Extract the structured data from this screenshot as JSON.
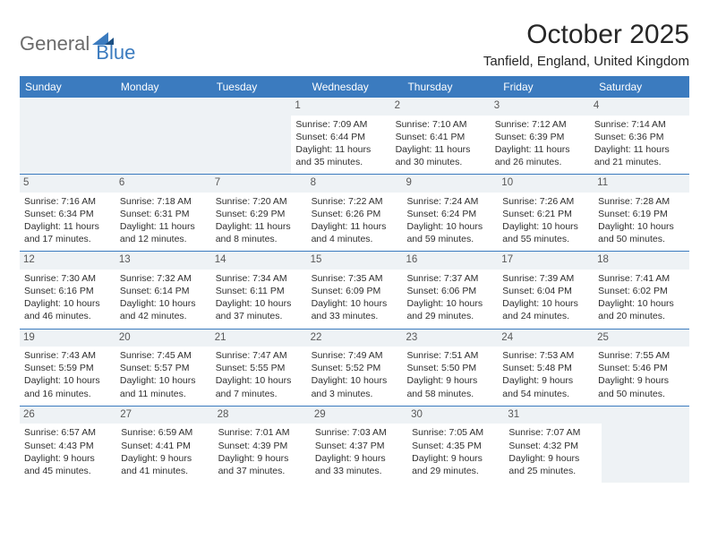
{
  "logo": {
    "text_general": "General",
    "text_blue": "Blue",
    "icon_color_dark": "#1c4f82",
    "icon_color_light": "#3b7bbf"
  },
  "title": "October 2025",
  "location": "Tanfield, England, United Kingdom",
  "colors": {
    "header_bg": "#3b7bbf",
    "header_text": "#ffffff",
    "daynum_bg": "#eef2f5",
    "row_border": "#3b7bbf"
  },
  "day_labels": [
    "Sunday",
    "Monday",
    "Tuesday",
    "Wednesday",
    "Thursday",
    "Friday",
    "Saturday"
  ],
  "weeks": [
    [
      null,
      null,
      null,
      {
        "n": "1",
        "sr": "7:09 AM",
        "ss": "6:44 PM",
        "dl": "11 hours and 35 minutes."
      },
      {
        "n": "2",
        "sr": "7:10 AM",
        "ss": "6:41 PM",
        "dl": "11 hours and 30 minutes."
      },
      {
        "n": "3",
        "sr": "7:12 AM",
        "ss": "6:39 PM",
        "dl": "11 hours and 26 minutes."
      },
      {
        "n": "4",
        "sr": "7:14 AM",
        "ss": "6:36 PM",
        "dl": "11 hours and 21 minutes."
      }
    ],
    [
      {
        "n": "5",
        "sr": "7:16 AM",
        "ss": "6:34 PM",
        "dl": "11 hours and 17 minutes."
      },
      {
        "n": "6",
        "sr": "7:18 AM",
        "ss": "6:31 PM",
        "dl": "11 hours and 12 minutes."
      },
      {
        "n": "7",
        "sr": "7:20 AM",
        "ss": "6:29 PM",
        "dl": "11 hours and 8 minutes."
      },
      {
        "n": "8",
        "sr": "7:22 AM",
        "ss": "6:26 PM",
        "dl": "11 hours and 4 minutes."
      },
      {
        "n": "9",
        "sr": "7:24 AM",
        "ss": "6:24 PM",
        "dl": "10 hours and 59 minutes."
      },
      {
        "n": "10",
        "sr": "7:26 AM",
        "ss": "6:21 PM",
        "dl": "10 hours and 55 minutes."
      },
      {
        "n": "11",
        "sr": "7:28 AM",
        "ss": "6:19 PM",
        "dl": "10 hours and 50 minutes."
      }
    ],
    [
      {
        "n": "12",
        "sr": "7:30 AM",
        "ss": "6:16 PM",
        "dl": "10 hours and 46 minutes."
      },
      {
        "n": "13",
        "sr": "7:32 AM",
        "ss": "6:14 PM",
        "dl": "10 hours and 42 minutes."
      },
      {
        "n": "14",
        "sr": "7:34 AM",
        "ss": "6:11 PM",
        "dl": "10 hours and 37 minutes."
      },
      {
        "n": "15",
        "sr": "7:35 AM",
        "ss": "6:09 PM",
        "dl": "10 hours and 33 minutes."
      },
      {
        "n": "16",
        "sr": "7:37 AM",
        "ss": "6:06 PM",
        "dl": "10 hours and 29 minutes."
      },
      {
        "n": "17",
        "sr": "7:39 AM",
        "ss": "6:04 PM",
        "dl": "10 hours and 24 minutes."
      },
      {
        "n": "18",
        "sr": "7:41 AM",
        "ss": "6:02 PM",
        "dl": "10 hours and 20 minutes."
      }
    ],
    [
      {
        "n": "19",
        "sr": "7:43 AM",
        "ss": "5:59 PM",
        "dl": "10 hours and 16 minutes."
      },
      {
        "n": "20",
        "sr": "7:45 AM",
        "ss": "5:57 PM",
        "dl": "10 hours and 11 minutes."
      },
      {
        "n": "21",
        "sr": "7:47 AM",
        "ss": "5:55 PM",
        "dl": "10 hours and 7 minutes."
      },
      {
        "n": "22",
        "sr": "7:49 AM",
        "ss": "5:52 PM",
        "dl": "10 hours and 3 minutes."
      },
      {
        "n": "23",
        "sr": "7:51 AM",
        "ss": "5:50 PM",
        "dl": "9 hours and 58 minutes."
      },
      {
        "n": "24",
        "sr": "7:53 AM",
        "ss": "5:48 PM",
        "dl": "9 hours and 54 minutes."
      },
      {
        "n": "25",
        "sr": "7:55 AM",
        "ss": "5:46 PM",
        "dl": "9 hours and 50 minutes."
      }
    ],
    [
      {
        "n": "26",
        "sr": "6:57 AM",
        "ss": "4:43 PM",
        "dl": "9 hours and 45 minutes."
      },
      {
        "n": "27",
        "sr": "6:59 AM",
        "ss": "4:41 PM",
        "dl": "9 hours and 41 minutes."
      },
      {
        "n": "28",
        "sr": "7:01 AM",
        "ss": "4:39 PM",
        "dl": "9 hours and 37 minutes."
      },
      {
        "n": "29",
        "sr": "7:03 AM",
        "ss": "4:37 PM",
        "dl": "9 hours and 33 minutes."
      },
      {
        "n": "30",
        "sr": "7:05 AM",
        "ss": "4:35 PM",
        "dl": "9 hours and 29 minutes."
      },
      {
        "n": "31",
        "sr": "7:07 AM",
        "ss": "4:32 PM",
        "dl": "9 hours and 25 minutes."
      },
      null
    ]
  ],
  "labels": {
    "sunrise": "Sunrise:",
    "sunset": "Sunset:",
    "daylight": "Daylight:"
  }
}
